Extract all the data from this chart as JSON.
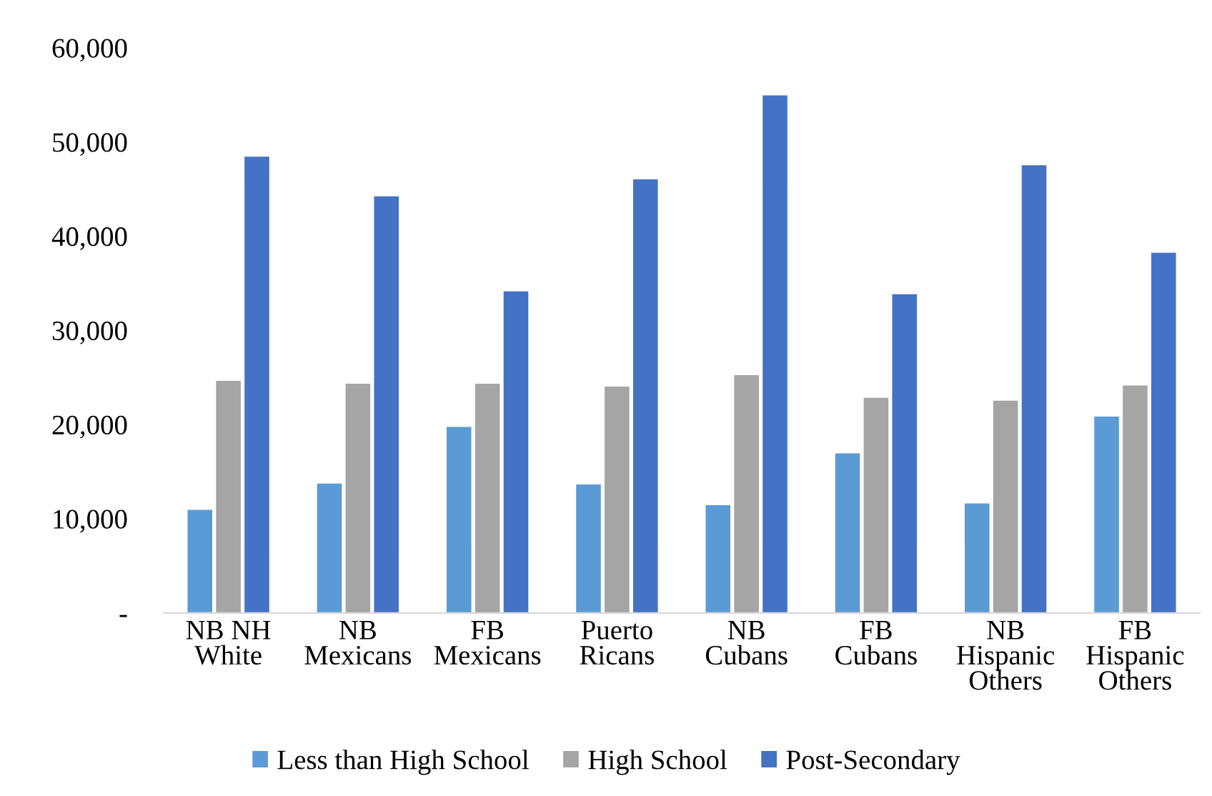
{
  "chart_data": {
    "type": "bar",
    "categories": [
      "NB NH\nWhite",
      "NB\nMexicans",
      "FB\nMexicans",
      "Puerto\nRicans",
      "NB\nCubans",
      "FB\nCubans",
      "NB\nHispanic\nOthers",
      "FB\nHispanic\nOthers"
    ],
    "series": [
      {
        "name": "Less than High School",
        "color": "#5b9bd5",
        "values": [
          11000,
          13800,
          19800,
          13700,
          11500,
          17000,
          11700,
          20900
        ]
      },
      {
        "name": "High School",
        "color": "#a5a5a5",
        "values": [
          24700,
          24400,
          24400,
          24100,
          25300,
          22900,
          22600,
          24200
        ]
      },
      {
        "name": "Post-Secondary",
        "color": "#4472c4",
        "values": [
          48500,
          44300,
          34200,
          46100,
          55000,
          33900,
          47600,
          38300
        ]
      }
    ],
    "ylim": [
      0,
      60000
    ],
    "yticks": [
      {
        "value": 0,
        "label": "-"
      },
      {
        "value": 10000,
        "label": "10,000"
      },
      {
        "value": 20000,
        "label": "20,000"
      },
      {
        "value": 30000,
        "label": "30,000"
      },
      {
        "value": 40000,
        "label": "40,000"
      },
      {
        "value": 50000,
        "label": "50,000"
      },
      {
        "value": 60000,
        "label": "60,000"
      }
    ],
    "grid": false,
    "legend": "bottom"
  }
}
